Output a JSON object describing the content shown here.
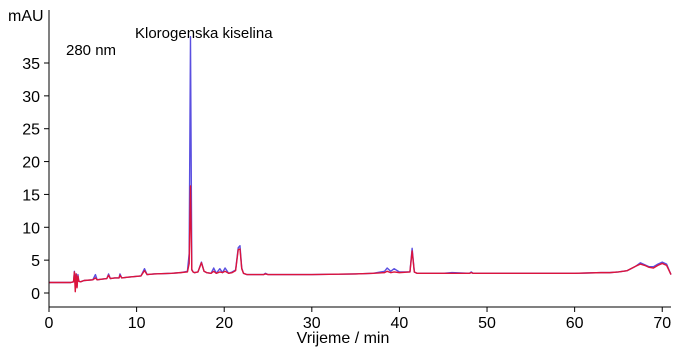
{
  "chart_data": {
    "type": "line",
    "xlabel": "Vrijeme / min",
    "ylabel": "mAU",
    "xlim": [
      0,
      71
    ],
    "ylim": [
      -1,
      40
    ],
    "x_ticks": [
      0,
      10,
      20,
      30,
      40,
      50,
      60,
      70
    ],
    "y_ticks": [
      0,
      5,
      10,
      15,
      20,
      25,
      30,
      35
    ],
    "grid": false,
    "annotations": [
      {
        "text": "280 nm"
      },
      {
        "text": "Klorogenska kiselina",
        "x": 16.3
      }
    ],
    "series": [
      {
        "color": "#5a4fe0",
        "x": [
          0,
          2.5,
          2.8,
          2.9,
          3.0,
          3.1,
          3.2,
          3.3,
          3.4,
          3.6,
          4.0,
          5.0,
          5.3,
          5.5,
          6.0,
          6.6,
          6.8,
          7.0,
          7.5,
          8.0,
          8.1,
          8.3,
          9,
          10.5,
          10.9,
          11.2,
          12,
          14,
          15,
          15.8,
          16.0,
          16.15,
          16.3,
          16.45,
          16.6,
          17,
          17.4,
          17.7,
          18,
          18.5,
          18.8,
          19.1,
          19.5,
          19.8,
          20.1,
          20.5,
          20.9,
          21.3,
          21.6,
          21.8,
          22.0,
          22.2,
          22.6,
          24.5,
          24.7,
          25,
          30,
          35,
          37,
          38.3,
          38.6,
          39,
          39.4,
          40,
          41.2,
          41.45,
          41.7,
          42,
          45,
          46,
          48,
          48.2,
          48.4,
          50,
          55,
          60,
          63,
          64,
          65,
          66,
          67,
          67.5,
          68,
          68.5,
          69,
          69.5,
          70,
          70.5,
          71
        ],
        "y": [
          1.6,
          1.6,
          1.7,
          3.3,
          1.2,
          2.9,
          1.0,
          2.8,
          1.8,
          1.7,
          1.9,
          2.0,
          2.8,
          2.0,
          2.1,
          2.2,
          2.9,
          2.2,
          2.3,
          2.3,
          2.9,
          2.3,
          2.4,
          2.6,
          3.7,
          2.8,
          2.9,
          3.0,
          3.1,
          3.3,
          6.0,
          39.0,
          3.6,
          3.2,
          3.1,
          3.2,
          4.7,
          3.3,
          3.1,
          3.0,
          3.8,
          3.0,
          3.7,
          3.1,
          3.8,
          3.0,
          3.2,
          3.5,
          6.9,
          7.2,
          3.8,
          3.0,
          2.8,
          2.8,
          3.0,
          2.8,
          2.8,
          2.9,
          3.0,
          3.3,
          3.8,
          3.3,
          3.7,
          3.2,
          3.2,
          6.8,
          3.2,
          3.0,
          3.0,
          3.1,
          3.0,
          3.2,
          3.0,
          3.0,
          3.0,
          3.0,
          3.1,
          3.1,
          3.2,
          3.4,
          4.1,
          4.6,
          4.3,
          4.0,
          4.0,
          4.4,
          4.7,
          4.4,
          2.8
        ]
      },
      {
        "color": "#dc143c",
        "x": [
          0,
          2.5,
          2.8,
          2.9,
          3.0,
          3.1,
          3.2,
          3.3,
          3.4,
          3.6,
          4.0,
          5.0,
          5.3,
          5.5,
          6.0,
          6.6,
          6.8,
          7.0,
          7.5,
          8.0,
          8.1,
          8.3,
          9,
          10.5,
          10.9,
          11.2,
          12,
          14,
          15,
          15.8,
          16.0,
          16.15,
          16.3,
          16.45,
          16.6,
          17,
          17.4,
          17.7,
          18,
          18.5,
          18.8,
          19.1,
          19.5,
          19.8,
          20.1,
          20.5,
          20.9,
          21.3,
          21.6,
          21.8,
          22.0,
          22.2,
          22.6,
          24.5,
          24.7,
          25,
          30,
          35,
          37,
          38.3,
          38.6,
          39,
          39.4,
          40,
          41.2,
          41.45,
          41.7,
          42,
          45,
          46,
          48,
          48.2,
          48.4,
          50,
          55,
          60,
          63,
          64,
          65,
          66,
          67,
          67.5,
          68,
          68.5,
          69,
          69.5,
          70,
          70.5,
          71
        ],
        "y": [
          1.6,
          1.6,
          1.7,
          3.2,
          0.2,
          2.9,
          0.8,
          2.6,
          1.8,
          1.7,
          1.9,
          2.0,
          2.3,
          2.0,
          2.1,
          2.2,
          2.7,
          2.2,
          2.3,
          2.3,
          2.7,
          2.3,
          2.4,
          2.6,
          3.4,
          2.8,
          2.9,
          3.0,
          3.1,
          3.2,
          4.5,
          16.3,
          3.5,
          3.2,
          3.1,
          3.2,
          4.6,
          3.3,
          3.1,
          3.0,
          3.3,
          3.0,
          3.2,
          3.1,
          3.3,
          3.0,
          3.1,
          3.4,
          6.6,
          6.7,
          3.7,
          3.0,
          2.8,
          2.8,
          2.9,
          2.8,
          2.8,
          2.9,
          3.0,
          3.1,
          3.3,
          3.1,
          3.2,
          3.1,
          3.2,
          6.4,
          3.2,
          3.0,
          3.0,
          3.0,
          3.0,
          3.1,
          3.0,
          3.0,
          3.0,
          3.0,
          3.1,
          3.1,
          3.2,
          3.4,
          4.1,
          4.4,
          4.2,
          3.9,
          3.8,
          4.2,
          4.5,
          4.2,
          2.8
        ]
      }
    ]
  }
}
